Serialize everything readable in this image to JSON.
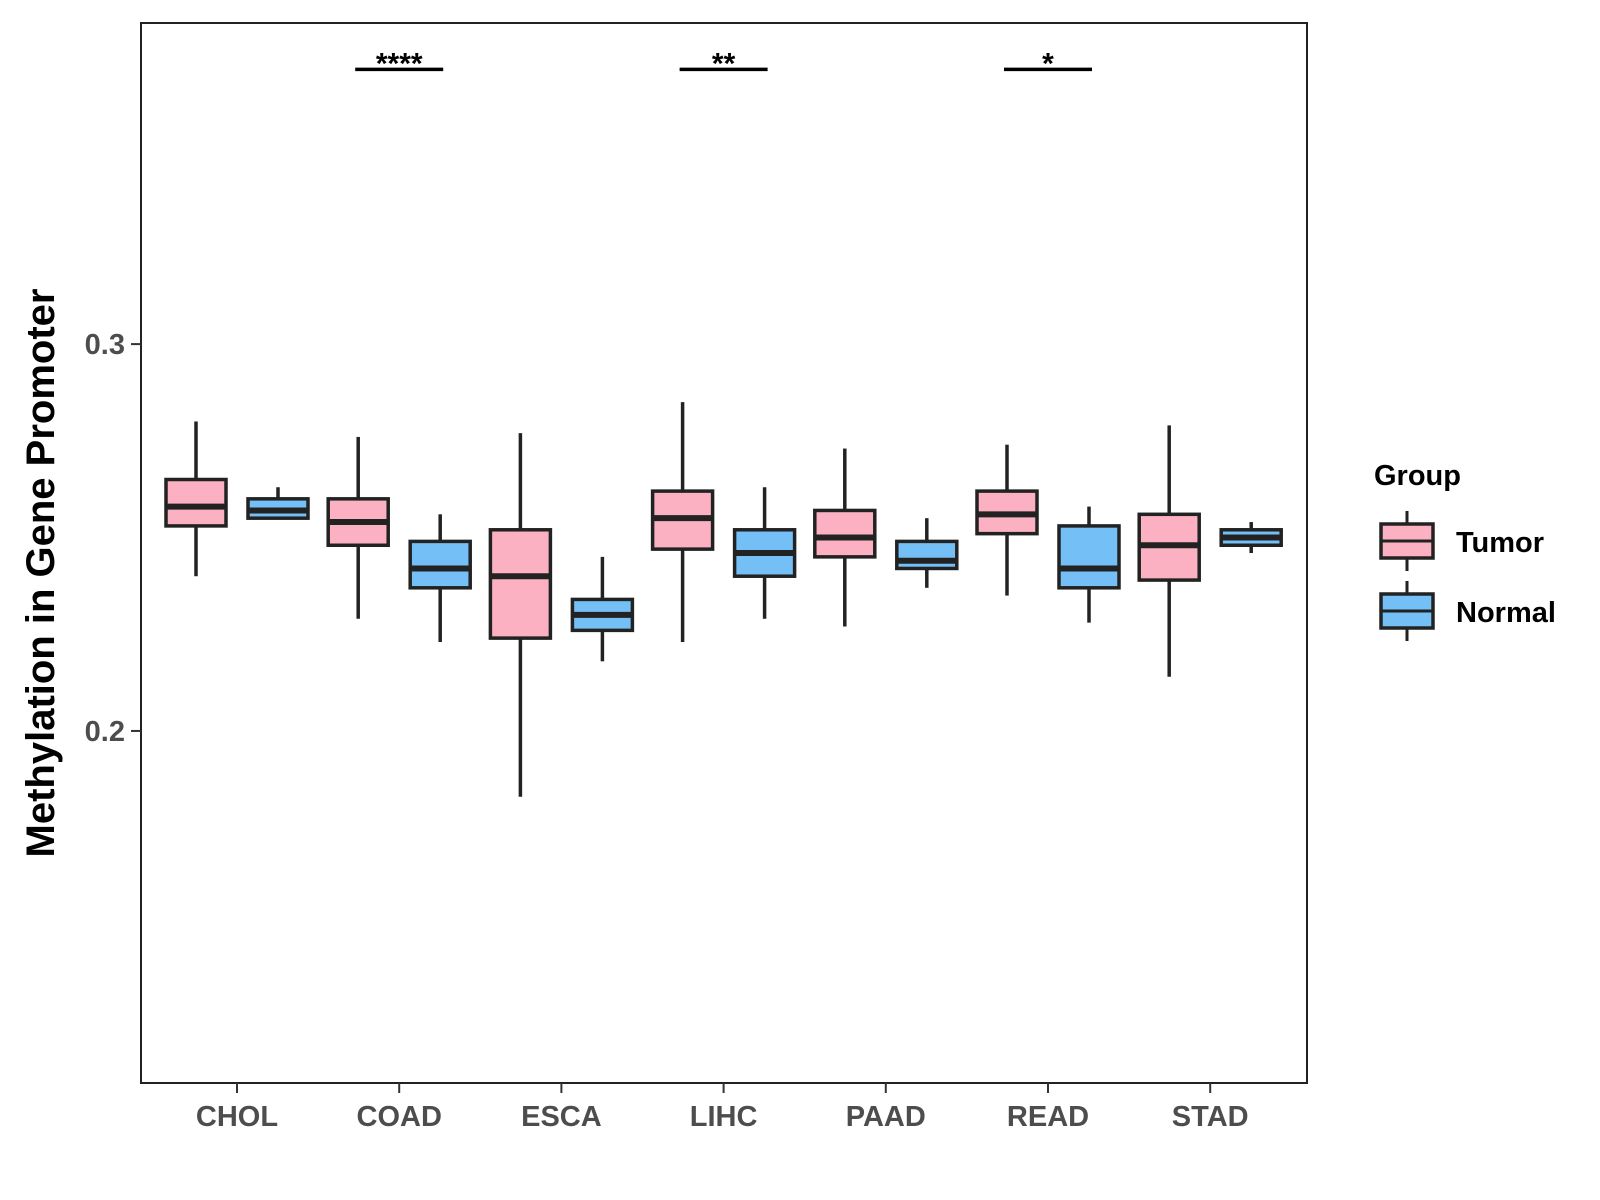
{
  "chart_data": {
    "type": "boxplot",
    "title": "",
    "xlabel": "",
    "ylabel": "Methylation in Gene Promoter",
    "ylim": [
      0.109,
      0.383
    ],
    "yticks": [
      0.2,
      0.3
    ],
    "ytick_labels": [
      "0.2",
      "0.3"
    ],
    "grid": false,
    "legend_position": "right",
    "legend_title": "Group",
    "colors": {
      "Tumor": "#FBB1C2",
      "Normal": "#74BFF5",
      "stroke": "#222222"
    },
    "categories": [
      "CHOL",
      "COAD",
      "ESCA",
      "LIHC",
      "PAAD",
      "READ",
      "STAD"
    ],
    "series": [
      {
        "name": "Tumor",
        "boxes": [
          {
            "min": 0.24,
            "q1": 0.253,
            "median": 0.258,
            "q3": 0.265,
            "max": 0.28
          },
          {
            "min": 0.229,
            "q1": 0.248,
            "median": 0.254,
            "q3": 0.26,
            "max": 0.276
          },
          {
            "min": 0.183,
            "q1": 0.224,
            "median": 0.24,
            "q3": 0.252,
            "max": 0.277
          },
          {
            "min": 0.223,
            "q1": 0.247,
            "median": 0.255,
            "q3": 0.262,
            "max": 0.285
          },
          {
            "min": 0.227,
            "q1": 0.245,
            "median": 0.25,
            "q3": 0.257,
            "max": 0.273
          },
          {
            "min": 0.235,
            "q1": 0.251,
            "median": 0.256,
            "q3": 0.262,
            "max": 0.274
          },
          {
            "min": 0.214,
            "q1": 0.239,
            "median": 0.248,
            "q3": 0.256,
            "max": 0.279
          }
        ]
      },
      {
        "name": "Normal",
        "boxes": [
          {
            "min": 0.255,
            "q1": 0.255,
            "median": 0.257,
            "q3": 0.26,
            "max": 0.263
          },
          {
            "min": 0.223,
            "q1": 0.237,
            "median": 0.242,
            "q3": 0.249,
            "max": 0.256
          },
          {
            "min": 0.218,
            "q1": 0.226,
            "median": 0.23,
            "q3": 0.234,
            "max": 0.245
          },
          {
            "min": 0.229,
            "q1": 0.24,
            "median": 0.246,
            "q3": 0.252,
            "max": 0.263
          },
          {
            "min": 0.237,
            "q1": 0.242,
            "median": 0.244,
            "q3": 0.249,
            "max": 0.255
          },
          {
            "min": 0.228,
            "q1": 0.237,
            "median": 0.242,
            "q3": 0.253,
            "max": 0.258
          },
          {
            "min": 0.246,
            "q1": 0.248,
            "median": 0.25,
            "q3": 0.252,
            "max": 0.254
          }
        ]
      }
    ],
    "significance": [
      {
        "category": "COAD",
        "label": "****",
        "y": 0.371
      },
      {
        "category": "LIHC",
        "label": "**",
        "y": 0.371
      },
      {
        "category": "READ",
        "label": "*",
        "y": 0.371
      }
    ]
  }
}
